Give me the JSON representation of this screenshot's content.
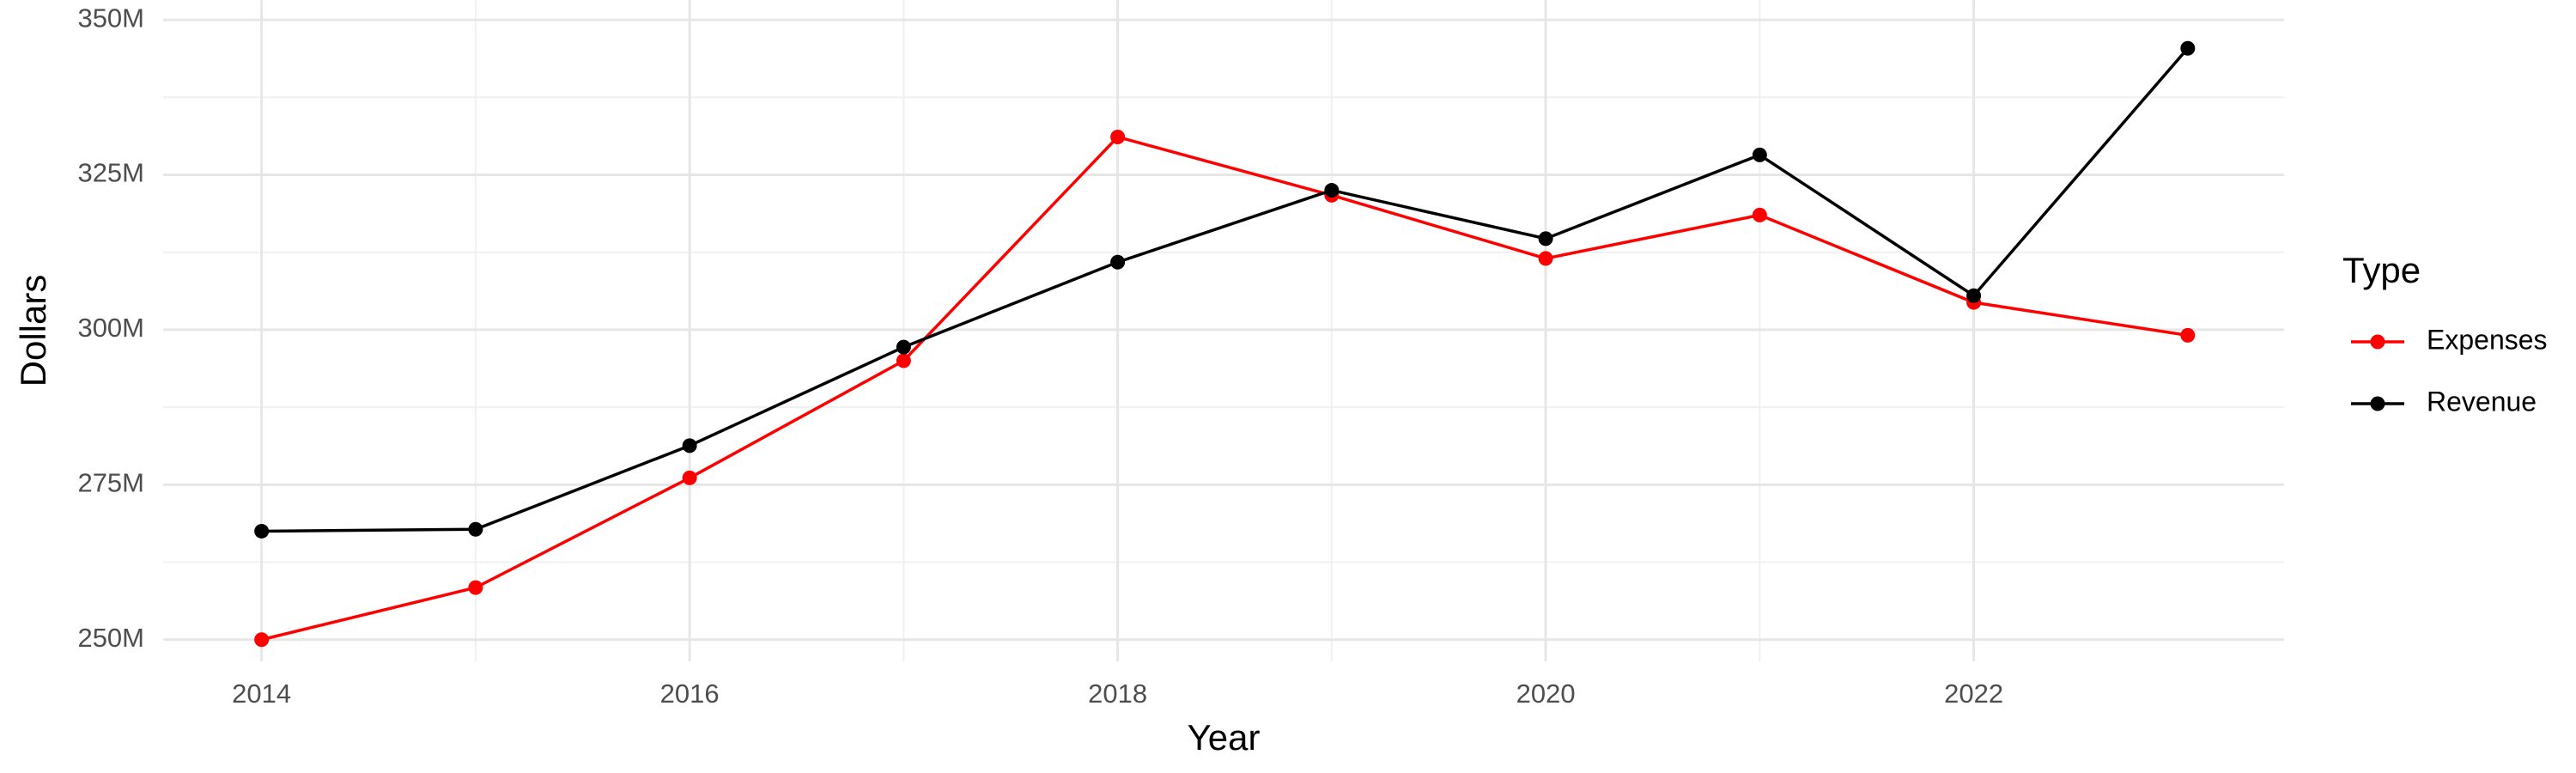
{
  "chart_data": {
    "type": "line",
    "x_label": "Year",
    "y_label": "Dollars",
    "legend_title": "Type",
    "x": [
      2014,
      2015,
      2016,
      2017,
      2018,
      2019,
      2020,
      2021,
      2022,
      2023
    ],
    "series": [
      {
        "name": "Expenses",
        "color": "#ff0000",
        "values": [
          250000000,
          258400000,
          276100000,
          295000000,
          331100000,
          321700000,
          311500000,
          318500000,
          304400000,
          299100000
        ]
      },
      {
        "name": "Revenue",
        "color": "#000000",
        "values": [
          267500000,
          267800000,
          281300000,
          297200000,
          310900000,
          322500000,
          314700000,
          328200000,
          305500000,
          345400000
        ]
      }
    ],
    "xlim": [
      2013.54,
      2023.45
    ],
    "xticks": [
      2014,
      2016,
      2018,
      2020,
      2022
    ],
    "ylim": [
      246500000,
      353200000
    ],
    "yticks": [
      {
        "value": 250000000,
        "label": "250M"
      },
      {
        "value": 275000000,
        "label": "275M"
      },
      {
        "value": 300000000,
        "label": "300M"
      },
      {
        "value": 325000000,
        "label": "325M"
      },
      {
        "value": 350000000,
        "label": "350M"
      }
    ],
    "grid": true,
    "legend_position": "right"
  }
}
